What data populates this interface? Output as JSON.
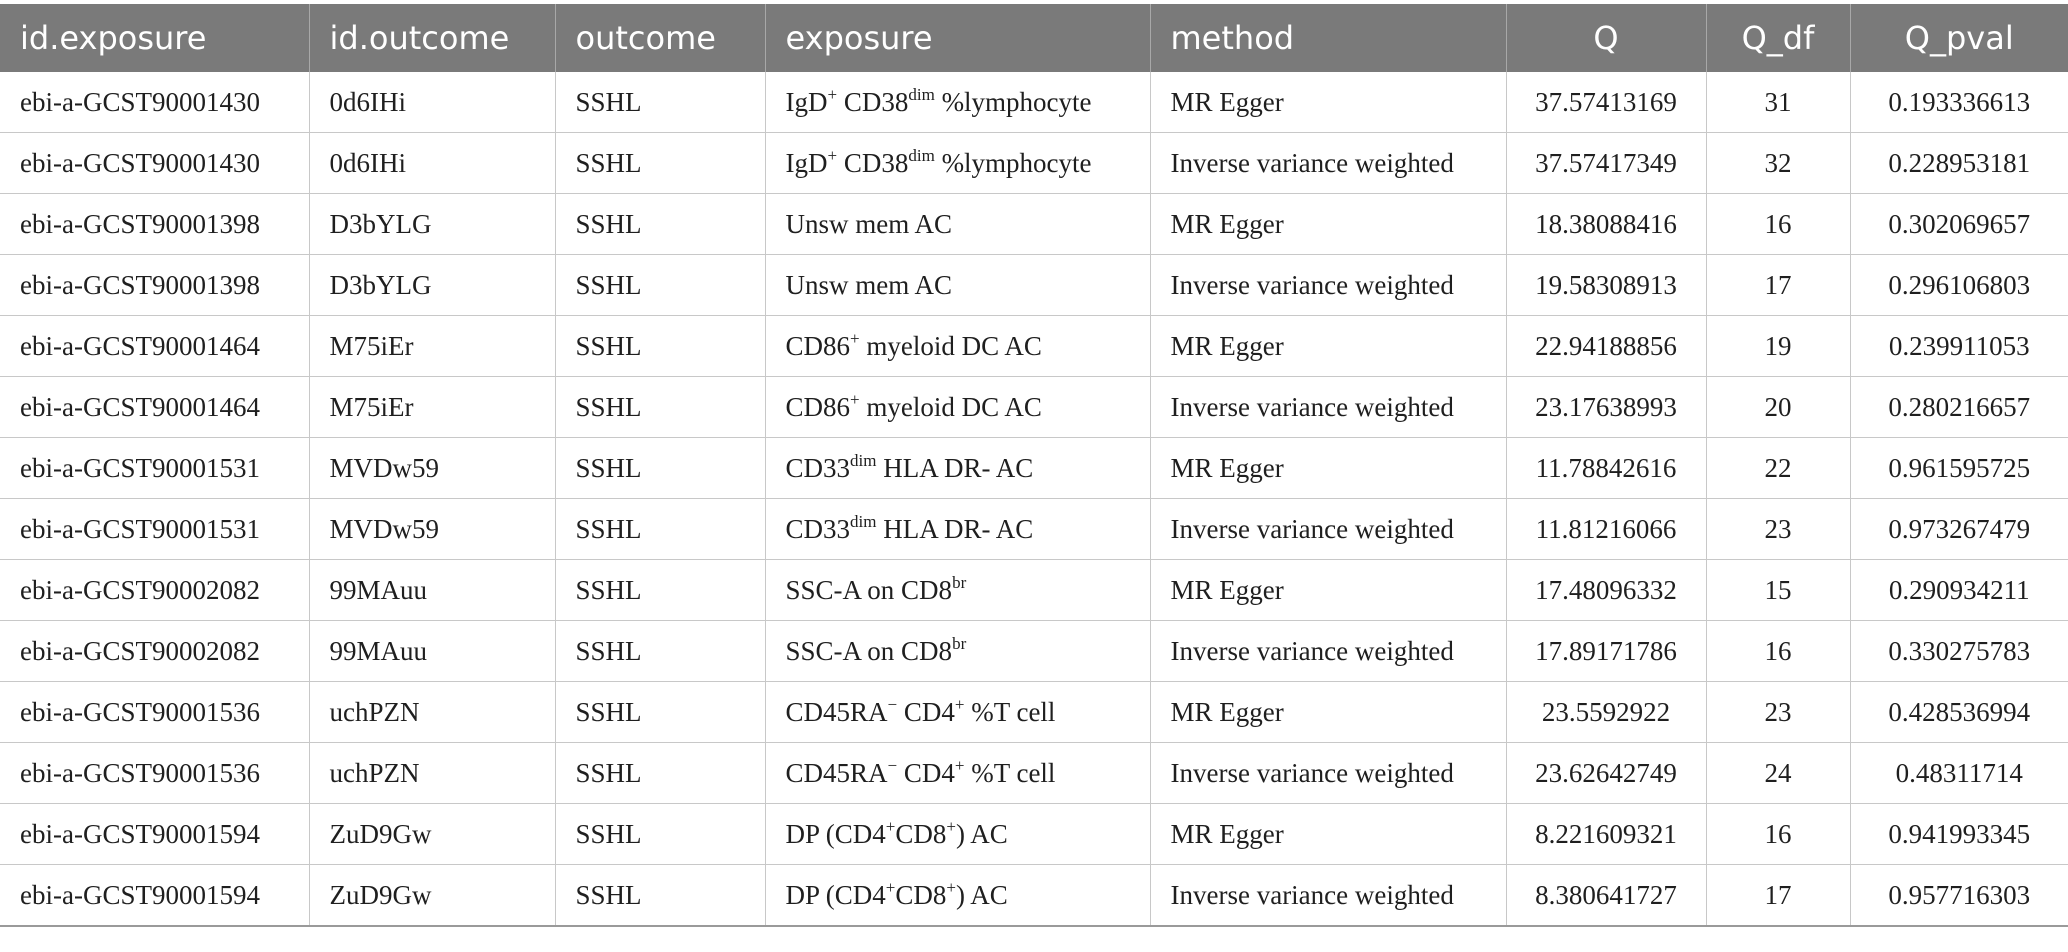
{
  "table": {
    "headers": [
      "id.exposure",
      "id.outcome",
      "outcome",
      "exposure",
      "method",
      "Q",
      "Q_df",
      "Q_pval"
    ],
    "rows": [
      {
        "id_exposure": "ebi-a-GCST90001430",
        "id_outcome": "0d6IHi",
        "outcome": "SSHL",
        "exposure": [
          {
            "t": "IgD"
          },
          {
            "s": "+"
          },
          {
            "t": " CD38"
          },
          {
            "s": "dim"
          },
          {
            "t": " %lymphocyte"
          }
        ],
        "method": "MR Egger",
        "Q": "37.57413169",
        "Q_df": "31",
        "Q_pval": "0.193336613"
      },
      {
        "id_exposure": "ebi-a-GCST90001430",
        "id_outcome": "0d6IHi",
        "outcome": "SSHL",
        "exposure": [
          {
            "t": "IgD"
          },
          {
            "s": "+"
          },
          {
            "t": " CD38"
          },
          {
            "s": "dim"
          },
          {
            "t": " %lymphocyte"
          }
        ],
        "method": "Inverse variance weighted",
        "Q": "37.57417349",
        "Q_df": "32",
        "Q_pval": "0.228953181"
      },
      {
        "id_exposure": "ebi-a-GCST90001398",
        "id_outcome": "D3bYLG",
        "outcome": "SSHL",
        "exposure": [
          {
            "t": "Unsw mem AC"
          }
        ],
        "method": "MR Egger",
        "Q": "18.38088416",
        "Q_df": "16",
        "Q_pval": "0.302069657"
      },
      {
        "id_exposure": "ebi-a-GCST90001398",
        "id_outcome": "D3bYLG",
        "outcome": "SSHL",
        "exposure": [
          {
            "t": "Unsw mem AC"
          }
        ],
        "method": "Inverse variance weighted",
        "Q": "19.58308913",
        "Q_df": "17",
        "Q_pval": "0.296106803"
      },
      {
        "id_exposure": "ebi-a-GCST90001464",
        "id_outcome": "M75iEr",
        "outcome": "SSHL",
        "exposure": [
          {
            "t": "CD86"
          },
          {
            "s": "+"
          },
          {
            "t": " myeloid DC AC"
          }
        ],
        "method": "MR Egger",
        "Q": "22.94188856",
        "Q_df": "19",
        "Q_pval": "0.239911053"
      },
      {
        "id_exposure": "ebi-a-GCST90001464",
        "id_outcome": "M75iEr",
        "outcome": "SSHL",
        "exposure": [
          {
            "t": "CD86"
          },
          {
            "s": "+"
          },
          {
            "t": " myeloid DC AC"
          }
        ],
        "method": "Inverse variance weighted",
        "Q": "23.17638993",
        "Q_df": "20",
        "Q_pval": "0.280216657"
      },
      {
        "id_exposure": "ebi-a-GCST90001531",
        "id_outcome": "MVDw59",
        "outcome": "SSHL",
        "exposure": [
          {
            "t": "CD33"
          },
          {
            "s": "dim"
          },
          {
            "t": " HLA DR- AC"
          }
        ],
        "method": "MR Egger",
        "Q": "11.78842616",
        "Q_df": "22",
        "Q_pval": "0.961595725"
      },
      {
        "id_exposure": "ebi-a-GCST90001531",
        "id_outcome": "MVDw59",
        "outcome": "SSHL",
        "exposure": [
          {
            "t": "CD33"
          },
          {
            "s": "dim"
          },
          {
            "t": " HLA DR- AC"
          }
        ],
        "method": "Inverse variance weighted",
        "Q": "11.81216066",
        "Q_df": "23",
        "Q_pval": "0.973267479"
      },
      {
        "id_exposure": "ebi-a-GCST90002082",
        "id_outcome": "99MAuu",
        "outcome": "SSHL",
        "exposure": [
          {
            "t": "SSC-A on CD8"
          },
          {
            "s": "br"
          }
        ],
        "method": "MR Egger",
        "Q": "17.48096332",
        "Q_df": "15",
        "Q_pval": "0.290934211"
      },
      {
        "id_exposure": "ebi-a-GCST90002082",
        "id_outcome": "99MAuu",
        "outcome": "SSHL",
        "exposure": [
          {
            "t": "SSC-A on CD8"
          },
          {
            "s": "br"
          }
        ],
        "method": "Inverse variance weighted",
        "Q": "17.89171786",
        "Q_df": "16",
        "Q_pval": "0.330275783"
      },
      {
        "id_exposure": "ebi-a-GCST90001536",
        "id_outcome": "uchPZN",
        "outcome": "SSHL",
        "exposure": [
          {
            "t": "CD45RA"
          },
          {
            "s": "−"
          },
          {
            "t": " CD4"
          },
          {
            "s": "+"
          },
          {
            "t": " %T cell"
          }
        ],
        "method": "MR Egger",
        "Q": "23.5592922",
        "Q_df": "23",
        "Q_pval": "0.428536994"
      },
      {
        "id_exposure": "ebi-a-GCST90001536",
        "id_outcome": "uchPZN",
        "outcome": "SSHL",
        "exposure": [
          {
            "t": "CD45RA"
          },
          {
            "s": "−"
          },
          {
            "t": " CD4"
          },
          {
            "s": "+"
          },
          {
            "t": " %T cell"
          }
        ],
        "method": "Inverse variance weighted",
        "Q": "23.62642749",
        "Q_df": "24",
        "Q_pval": "0.48311714"
      },
      {
        "id_exposure": "ebi-a-GCST90001594",
        "id_outcome": "ZuD9Gw",
        "outcome": "SSHL",
        "exposure": [
          {
            "t": "DP (CD4"
          },
          {
            "s": "+"
          },
          {
            "t": "CD8"
          },
          {
            "s": "+"
          },
          {
            "t": ") AC"
          }
        ],
        "method": "MR Egger",
        "Q": "8.221609321",
        "Q_df": "16",
        "Q_pval": "0.941993345"
      },
      {
        "id_exposure": "ebi-a-GCST90001594",
        "id_outcome": "ZuD9Gw",
        "outcome": "SSHL",
        "exposure": [
          {
            "t": "DP (CD4"
          },
          {
            "s": "+"
          },
          {
            "t": "CD8"
          },
          {
            "s": "+"
          },
          {
            "t": ") AC"
          }
        ],
        "method": "Inverse variance weighted",
        "Q": "8.380641727",
        "Q_df": "17",
        "Q_pval": "0.957716303"
      }
    ]
  }
}
